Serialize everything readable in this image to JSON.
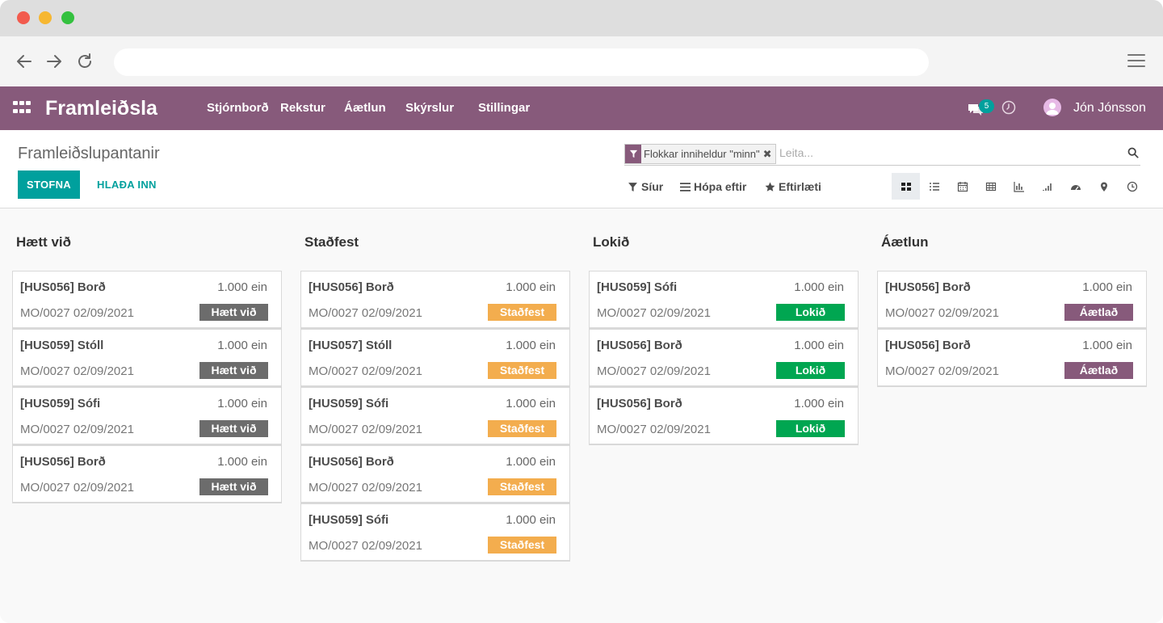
{
  "app": {
    "title": "Framleiðsla",
    "menu": [
      "Stjórnborð",
      "Rekstur",
      "Áætlun",
      "Skýrslur",
      "Stillingar"
    ],
    "chat_count": "5",
    "user": "Jón Jónsson"
  },
  "control": {
    "breadcrumb": "Framleiðslupantanir",
    "create_label": "STOFNA",
    "import_label": "HLAÐA INN",
    "facet_label": "Flokkar inniheldur \"minn\"",
    "search_placeholder": "Leita...",
    "filters_label": "Síur",
    "groupby_label": "Hópa eftir",
    "favorites_label": "Eftirlæti",
    "views": [
      "kanban",
      "list",
      "calendar",
      "pivot",
      "graph",
      "cohort",
      "dashboard",
      "map",
      "activity"
    ]
  },
  "colors": {
    "brand": "#875a7b",
    "primary": "#00a09d",
    "cancel": "#6c6c6c",
    "confirmed": "#f3ad4e",
    "done": "#00a651",
    "planned": "#875a7b"
  },
  "columns": [
    {
      "title": "Hætt við",
      "cards": [
        {
          "name": "[HUS056] Borð",
          "qty": "1.000 ein",
          "ref": "MO/0027 02/09/2021",
          "status": "Hætt við"
        },
        {
          "name": "[HUS059] Stóll",
          "qty": "1.000 ein",
          "ref": "MO/0027 02/09/2021",
          "status": "Hætt við"
        },
        {
          "name": "[HUS059] Sófi",
          "qty": "1.000 ein",
          "ref": "MO/0027 02/09/2021",
          "status": "Hætt við"
        },
        {
          "name": "[HUS056] Borð",
          "qty": "1.000 ein",
          "ref": "MO/0027 02/09/2021",
          "status": "Hætt við"
        }
      ]
    },
    {
      "title": "Staðfest",
      "cards": [
        {
          "name": "[HUS056] Borð",
          "qty": "1.000 ein",
          "ref": "MO/0027 02/09/2021",
          "status": "Staðfest"
        },
        {
          "name": "[HUS057] Stóll",
          "qty": "1.000 ein",
          "ref": "MO/0027 02/09/2021",
          "status": "Staðfest"
        },
        {
          "name": "[HUS059] Sófi",
          "qty": "1.000 ein",
          "ref": "MO/0027 02/09/2021",
          "status": "Staðfest"
        },
        {
          "name": "[HUS056] Borð",
          "qty": "1.000 ein",
          "ref": "MO/0027 02/09/2021",
          "status": "Staðfest"
        },
        {
          "name": "[HUS059] Sófi",
          "qty": "1.000 ein",
          "ref": "MO/0027 02/09/2021",
          "status": "Staðfest"
        }
      ]
    },
    {
      "title": "Lokið",
      "cards": [
        {
          "name": "[HUS059] Sófi",
          "qty": "1.000 ein",
          "ref": "MO/0027 02/09/2021",
          "status": "Lokið"
        },
        {
          "name": "[HUS056] Borð",
          "qty": "1.000 ein",
          "ref": "MO/0027 02/09/2021",
          "status": "Lokið"
        },
        {
          "name": "[HUS056] Borð",
          "qty": "1.000 ein",
          "ref": "MO/0027 02/09/2021",
          "status": "Lokið"
        }
      ]
    },
    {
      "title": "Áætlun",
      "cards": [
        {
          "name": "[HUS056] Borð",
          "qty": "1.000 ein",
          "ref": "MO/0027 02/09/2021",
          "status": "Áætlað"
        },
        {
          "name": "[HUS056] Borð",
          "qty": "1.000 ein",
          "ref": "MO/0027 02/09/2021",
          "status": "Áætlað"
        }
      ]
    }
  ]
}
